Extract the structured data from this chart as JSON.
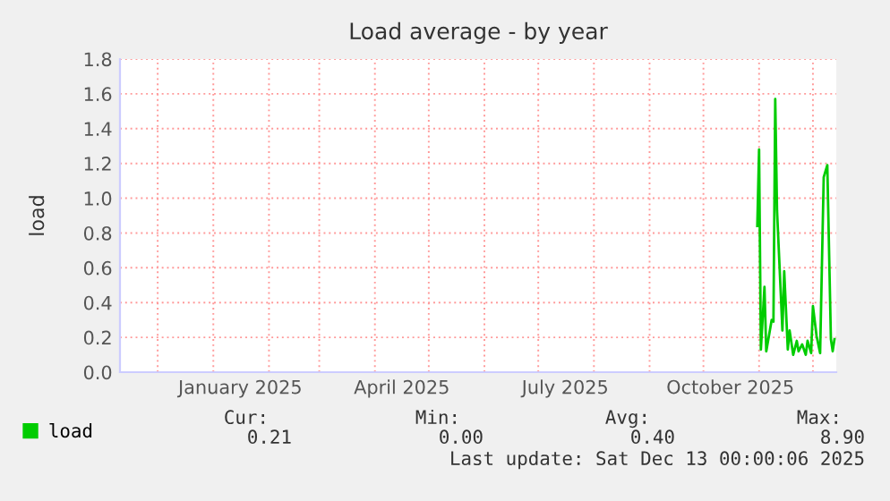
{
  "chart_data": {
    "type": "line",
    "title": "Load average - by year",
    "ylabel": "load",
    "x": [
      "2025-10-31",
      "2025-11-01",
      "2025-11-02",
      "2025-11-04",
      "2025-11-05",
      "2025-11-08",
      "2025-11-09",
      "2025-11-10",
      "2025-11-11",
      "2025-11-14",
      "2025-11-15",
      "2025-11-17",
      "2025-11-18",
      "2025-11-20",
      "2025-11-22",
      "2025-11-23",
      "2025-11-25",
      "2025-11-27",
      "2025-11-28",
      "2025-11-30",
      "2025-12-01",
      "2025-12-03",
      "2025-12-05",
      "2025-12-07",
      "2025-12-09",
      "2025-12-11",
      "2025-12-12",
      "2025-12-13"
    ],
    "series": [
      {
        "name": "load",
        "color": "#00cc00",
        "values": [
          0.84,
          1.28,
          0.13,
          0.49,
          0.12,
          0.3,
          0.29,
          1.57,
          0.93,
          0.24,
          0.58,
          0.13,
          0.24,
          0.1,
          0.18,
          0.12,
          0.16,
          0.1,
          0.18,
          0.11,
          0.38,
          0.21,
          0.11,
          1.12,
          1.19,
          0.19,
          0.12,
          0.19
        ]
      }
    ],
    "xlim": [
      "2024-11-10",
      "2025-12-14"
    ],
    "xticks": [
      {
        "value": "2024-12-01",
        "label": null
      },
      {
        "value": "2025-01-01",
        "label": null
      },
      {
        "value": "2025-01-16",
        "label": "January 2025"
      },
      {
        "value": "2025-02-01",
        "label": null
      },
      {
        "value": "2025-03-01",
        "label": null
      },
      {
        "value": "2025-04-01",
        "label": null
      },
      {
        "value": "2025-04-16",
        "label": "April 2025"
      },
      {
        "value": "2025-05-01",
        "label": null
      },
      {
        "value": "2025-06-01",
        "label": null
      },
      {
        "value": "2025-07-01",
        "label": null
      },
      {
        "value": "2025-07-16",
        "label": "July 2025"
      },
      {
        "value": "2025-08-01",
        "label": null
      },
      {
        "value": "2025-09-01",
        "label": null
      },
      {
        "value": "2025-10-01",
        "label": null
      },
      {
        "value": "2025-10-16",
        "label": "October 2025"
      },
      {
        "value": "2025-11-01",
        "label": null
      },
      {
        "value": "2025-12-01",
        "label": null
      }
    ],
    "ylim": [
      0,
      1.8
    ],
    "yticks": [
      {
        "value": 0,
        "label": "0.0"
      },
      0.2,
      0.4,
      0.6,
      0.8,
      {
        "value": 1,
        "label": "1.0"
      },
      1.2,
      1.4,
      1.6,
      1.8
    ],
    "grid": true,
    "legend": "bottom left",
    "annotations": [
      "Cur:",
      "Min:",
      "Avg:",
      "Max:",
      "0.21",
      "0.00",
      "0.40",
      "8.90",
      "Last update: Sat Dec 13 00:00:06 2025"
    ]
  }
}
